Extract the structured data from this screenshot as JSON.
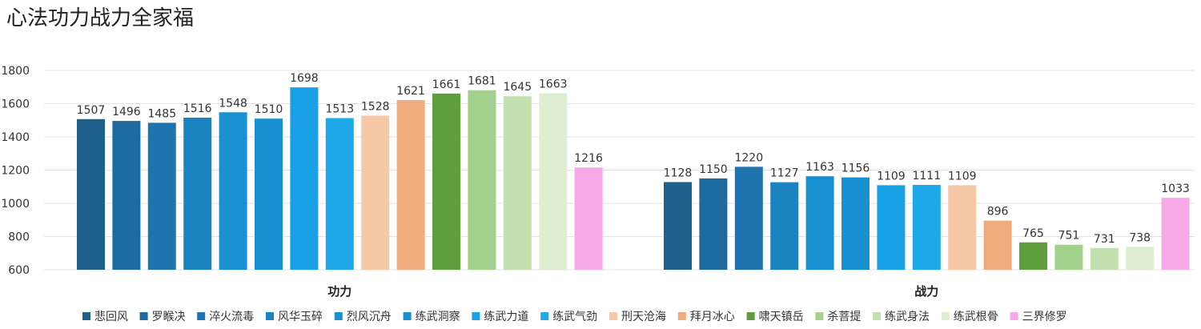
{
  "title": "心法功力战力全家福",
  "chart_data": {
    "type": "bar",
    "title": "心法功力战力全家福",
    "categories": [
      "功力",
      "战力"
    ],
    "ylim": [
      600,
      1800
    ],
    "yticks": [
      600,
      800,
      1000,
      1200,
      1400,
      1600,
      1800
    ],
    "grid": true,
    "legend_position": "bottom",
    "series": [
      {
        "name": "悲回风",
        "color": "#1f5f8b",
        "values": [
          1507,
          1128
        ]
      },
      {
        "name": "罗睺决",
        "color": "#1d6aa1",
        "values": [
          1496,
          1150
        ]
      },
      {
        "name": "淬火流毒",
        "color": "#1f74ae",
        "values": [
          1485,
          1220
        ]
      },
      {
        "name": "风华玉碎",
        "color": "#1b84c0",
        "values": [
          1516,
          1127
        ]
      },
      {
        "name": "烈风沉舟",
        "color": "#1990cf",
        "values": [
          1548,
          1163
        ]
      },
      {
        "name": "练武洞察",
        "color": "#1a8fd0",
        "values": [
          1510,
          1156
        ]
      },
      {
        "name": "练武力道",
        "color": "#1aa0e4",
        "values": [
          1698,
          1109
        ]
      },
      {
        "name": "练武气劲",
        "color": "#1fa9eb",
        "values": [
          1513,
          1111
        ]
      },
      {
        "name": "刑天沧海",
        "color": "#f5c8a8",
        "values": [
          1528,
          1109
        ]
      },
      {
        "name": "拜月冰心",
        "color": "#f0ab7d",
        "values": [
          1621,
          896
        ]
      },
      {
        "name": "啸天镇岳",
        "color": "#5e9e3c",
        "values": [
          1661,
          765
        ]
      },
      {
        "name": "杀菩提",
        "color": "#a3d08c",
        "values": [
          1681,
          751
        ]
      },
      {
        "name": "练武身法",
        "color": "#c2e0b0",
        "values": [
          1645,
          731
        ]
      },
      {
        "name": "练武根骨",
        "color": "#deefd1",
        "values": [
          1663,
          738
        ]
      },
      {
        "name": "三界修罗",
        "color": "#f7a8e6",
        "values": [
          1216,
          1033
        ]
      }
    ]
  }
}
